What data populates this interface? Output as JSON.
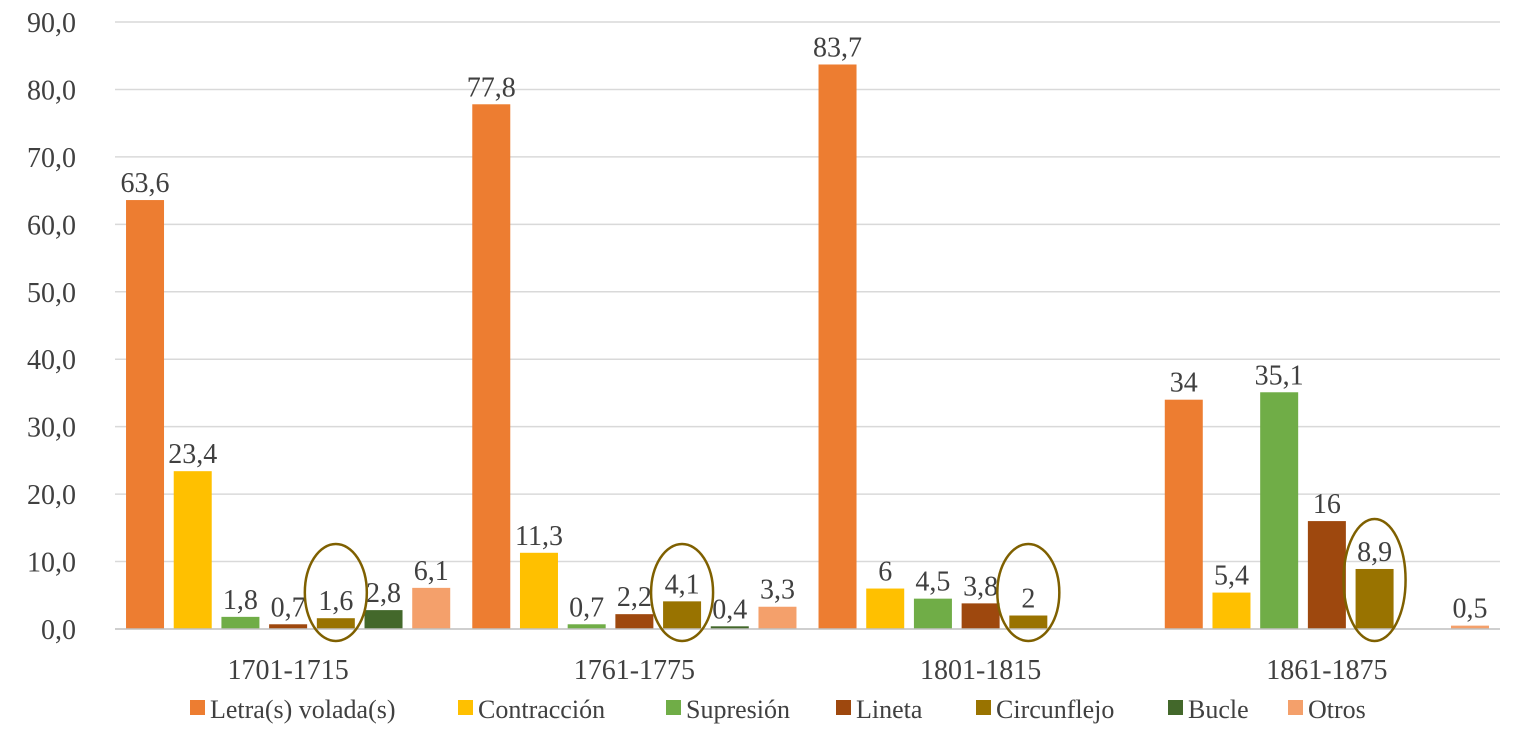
{
  "chart_data": {
    "type": "bar",
    "categories": [
      "1701-1715",
      "1761-1775",
      "1801-1815",
      "1861-1875"
    ],
    "ylim": [
      0,
      90
    ],
    "yticks": [
      "0,0",
      "10,0",
      "20,0",
      "30,0",
      "40,0",
      "50,0",
      "60,0",
      "70,0",
      "80,0",
      "90,0"
    ],
    "grid": true,
    "legend_position": "bottom",
    "series": [
      {
        "name": "Letra(s) volada(s)",
        "color": "#ED7D31",
        "values": [
          63.6,
          77.8,
          83.7,
          34
        ],
        "labels": [
          "63,6",
          "77,8",
          "83,7",
          "34"
        ]
      },
      {
        "name": "Contracción",
        "color": "#FFC000",
        "values": [
          23.4,
          11.3,
          6,
          5.4
        ],
        "labels": [
          "23,4",
          "11,3",
          "6",
          "5,4"
        ]
      },
      {
        "name": "Supresión",
        "color": "#70AD47",
        "values": [
          1.8,
          0.7,
          4.5,
          35.1
        ],
        "labels": [
          "1,8",
          "0,7",
          "4,5",
          "35,1"
        ]
      },
      {
        "name": "Lineta",
        "color": "#9E480E",
        "values": [
          0.7,
          2.2,
          3.8,
          16
        ],
        "labels": [
          "0,7",
          "2,2",
          "3,8",
          "16"
        ]
      },
      {
        "name": "Circunflejo",
        "color": "#997300",
        "values": [
          1.6,
          4.1,
          2,
          8.9
        ],
        "labels": [
          "1,6",
          "4,1",
          "2",
          "8,9"
        ]
      },
      {
        "name": "Bucle",
        "color": "#43682B",
        "values": [
          2.8,
          0.4,
          null,
          null
        ],
        "labels": [
          "2,8",
          "0,4",
          "",
          ""
        ]
      },
      {
        "name": "Otros",
        "color": "#F4A06B",
        "values": [
          6.1,
          3.3,
          null,
          0.5
        ],
        "labels": [
          "6,1",
          "3,3",
          "",
          "0,5"
        ]
      }
    ],
    "highlight_series": "Circunflejo",
    "highlight_color": "#7F6000"
  }
}
